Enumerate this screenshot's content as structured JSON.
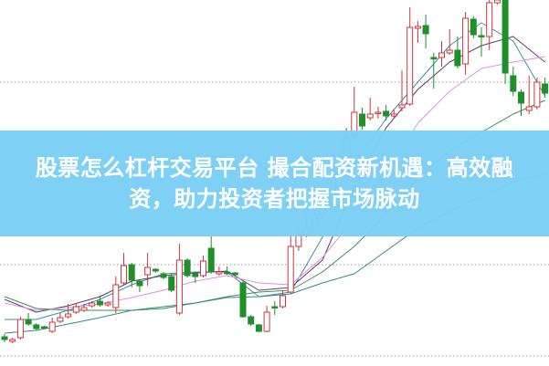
{
  "banner": {
    "line1": "股票怎么杠杆交易平台 撮合配资新机遇：高效融",
    "line2": "资，助力投资者把握市场脉动"
  },
  "colors": {
    "up": "#d0353f",
    "down": "#1f8f2a",
    "banner": "#7ad0f4",
    "ma": [
      "#3f8fa8",
      "#5a3f6a",
      "#e090e8",
      "#3f8f4f",
      "#2e8b8b"
    ]
  },
  "chart_data": {
    "type": "candlestick",
    "grid": true,
    "candles": [
      [
        31,
        34,
        25,
        28
      ],
      [
        26,
        30,
        24,
        28
      ],
      [
        30,
        53,
        28,
        50
      ],
      [
        50,
        57,
        43,
        45
      ],
      [
        44,
        46,
        38,
        40
      ],
      [
        42,
        43,
        40,
        41
      ],
      [
        37,
        52,
        35,
        47
      ],
      [
        48,
        57,
        46,
        52
      ],
      [
        53,
        67,
        51,
        56
      ],
      [
        58,
        68,
        56,
        64
      ],
      [
        60,
        67,
        58,
        63
      ],
      [
        65,
        70,
        63,
        68
      ],
      [
        70,
        76,
        64,
        66
      ],
      [
        66,
        70,
        64,
        68
      ],
      [
        63,
        97,
        57,
        88
      ],
      [
        90,
        123,
        88,
        109
      ],
      [
        110,
        112,
        85,
        93
      ],
      [
        92,
        94,
        80,
        87
      ],
      [
        99,
        123,
        87,
        107
      ],
      [
        105,
        106,
        101,
        103
      ],
      [
        100,
        102,
        94,
        96
      ],
      [
        97,
        100,
        80,
        82
      ],
      [
        57,
        133,
        55,
        115
      ],
      [
        115,
        117,
        96,
        98
      ],
      [
        100,
        102,
        90,
        97
      ],
      [
        98,
        120,
        96,
        114
      ],
      [
        128,
        142,
        100,
        102
      ],
      [
        100,
        108,
        98,
        102
      ],
      [
        102,
        108,
        99,
        100
      ],
      [
        101,
        102,
        97,
        99
      ],
      [
        90,
        92,
        52,
        53
      ],
      [
        53,
        55,
        43,
        45
      ],
      [
        44,
        45,
        36,
        37
      ],
      [
        37,
        65,
        36,
        58
      ],
      [
        64,
        70,
        55,
        63
      ],
      [
        64,
        82,
        62,
        76
      ],
      [
        80,
        170,
        78,
        130
      ],
      [
        130,
        150,
        125,
        142
      ],
      [
        143,
        165,
        140,
        150
      ],
      [
        150,
        175,
        145,
        165
      ],
      [
        165,
        190,
        160,
        180
      ],
      [
        185,
        195,
        170,
        175
      ],
      [
        175,
        220,
        172,
        210
      ],
      [
        210,
        260,
        205,
        250
      ],
      [
        252,
        305,
        248,
        277
      ],
      [
        275,
        282,
        258,
        262
      ],
      [
        271,
        293,
        268,
        275
      ],
      [
        276,
        283,
        270,
        277
      ],
      [
        278,
        285,
        268,
        273
      ],
      [
        273,
        280,
        270,
        275
      ],
      [
        282,
        323,
        278,
        285
      ],
      [
        286,
        392,
        284,
        370
      ],
      [
        369,
        377,
        353,
        371
      ],
      [
        372,
        384,
        347,
        363
      ],
      [
        337,
        342,
        303,
        336
      ],
      [
        337,
        355,
        327,
        342
      ],
      [
        342,
        368,
        340,
        345
      ],
      [
        345,
        360,
        325,
        328
      ],
      [
        330,
        387,
        318,
        380
      ],
      [
        379,
        382,
        358,
        362
      ],
      [
        361,
        370,
        338,
        360
      ],
      [
        360,
        400,
        345,
        397
      ],
      [
        397,
        405,
        395,
        400
      ],
      [
        400,
        405,
        308,
        320
      ],
      [
        317,
        327,
        295,
        300
      ],
      [
        299,
        302,
        273,
        287
      ],
      [
        279,
        317,
        275,
        283
      ],
      [
        283,
        315,
        280,
        310
      ],
      [
        308,
        315,
        293,
        298
      ]
    ],
    "moving_averages_sample_step": 4,
    "moving_averages": [
      [
        50,
        50,
        60,
        72,
        88,
        100,
        102,
        102,
        75,
        80,
        140,
        220,
        270,
        310,
        350,
        375,
        355,
        295
      ],
      [
        72,
        58,
        65,
        75,
        92,
        98,
        101,
        103,
        82,
        85,
        115,
        195,
        260,
        302,
        332,
        350,
        360,
        332
      ],
      [
        68,
        60,
        63,
        67,
        74,
        82,
        92,
        98,
        90,
        88,
        118,
        160,
        210,
        265,
        300,
        325,
        332,
        338
      ],
      [
        75,
        62,
        60,
        60,
        60,
        62,
        68,
        75,
        80,
        82,
        102,
        130,
        165,
        205,
        235,
        255,
        275,
        290
      ],
      [
        35,
        38,
        45,
        52,
        60,
        64,
        68,
        74,
        75,
        78,
        90,
        100,
        125,
        150,
        168,
        185,
        200,
        210
      ]
    ]
  }
}
